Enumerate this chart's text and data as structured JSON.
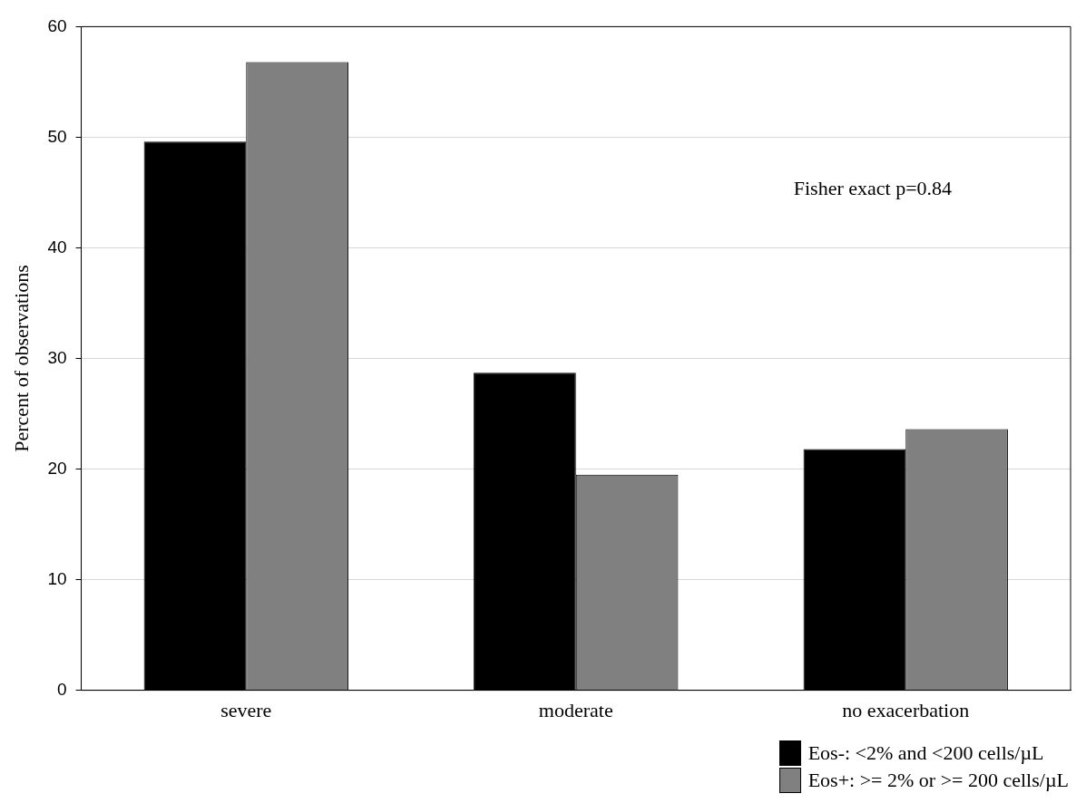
{
  "chart_data": {
    "type": "bar",
    "ylabel": "Percent of observations",
    "categories": [
      "severe",
      "moderate",
      "no exacerbation"
    ],
    "series": [
      {
        "name": "Eos-: <2% and <200 cells/µL",
        "color": "#000000",
        "values": [
          49.6,
          28.7,
          21.8
        ]
      },
      {
        "name": "Eos+: >= 2% or >= 200 cells/µL",
        "color": "#808080",
        "values": [
          56.8,
          19.5,
          23.6
        ]
      }
    ],
    "ylim": [
      0,
      60
    ],
    "yticks": [
      0,
      10,
      20,
      30,
      40,
      50,
      60
    ],
    "grid": "y",
    "legend": "bottom right",
    "annotations": [
      "Fisher exact p=0.84"
    ]
  }
}
